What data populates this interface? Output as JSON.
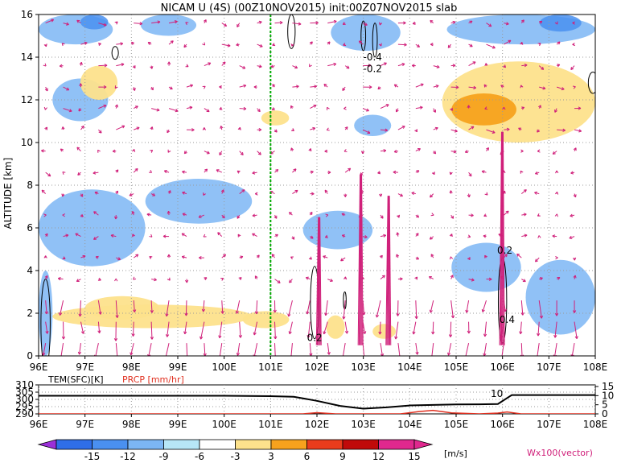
{
  "title": "NICAM U (4S) (00Z10NOV2015) init:00Z07NOV2015 slab",
  "chart_data": [
    {
      "type": "heatmap",
      "title": "NICAM U (4S) (00Z10NOV2015) init:00Z07NOV2015 slab",
      "xlabel": "",
      "ylabel": "ALTITUDE [km]",
      "xlim": [
        96,
        108
      ],
      "ylim": [
        0,
        16
      ],
      "x_ticks": [
        "96E",
        "97E",
        "98E",
        "99E",
        "100E",
        "101E",
        "102E",
        "103E",
        "104E",
        "105E",
        "106E",
        "107E",
        "108E"
      ],
      "y_ticks": [
        "0",
        "2",
        "4",
        "6",
        "8",
        "10",
        "12",
        "14",
        "16"
      ],
      "grid": true,
      "marker_line_lon": 101.0,
      "contour_labels": [
        "-0.4",
        "-0.2",
        "0.2",
        "0.2",
        "0.4"
      ],
      "u_regions": [
        {
          "level": -6,
          "x0": 96.0,
          "x1": 97.6,
          "y0": 14.6,
          "y1": 16.0
        },
        {
          "level": -9,
          "x0": 96.9,
          "x1": 97.5,
          "y0": 15.3,
          "y1": 16.0
        },
        {
          "level": -6,
          "x0": 98.2,
          "x1": 99.4,
          "y0": 15.0,
          "y1": 16.0
        },
        {
          "level": -6,
          "x0": 102.3,
          "x1": 103.8,
          "y0": 14.3,
          "y1": 16.0
        },
        {
          "level": -6,
          "x0": 104.8,
          "x1": 108.0,
          "y0": 14.6,
          "y1": 16.0
        },
        {
          "level": -9,
          "x0": 106.8,
          "x1": 107.7,
          "y0": 15.2,
          "y1": 16.0
        },
        {
          "level": -6,
          "x0": 96.3,
          "x1": 97.5,
          "y0": 11.0,
          "y1": 13.0
        },
        {
          "level": -6,
          "x0": 102.8,
          "x1": 103.6,
          "y0": 10.3,
          "y1": 11.3
        },
        {
          "level": -6,
          "x0": 96.0,
          "x1": 98.3,
          "y0": 4.2,
          "y1": 7.8
        },
        {
          "level": -6,
          "x0": 98.3,
          "x1": 100.6,
          "y0": 6.2,
          "y1": 8.3
        },
        {
          "level": -6,
          "x0": 101.7,
          "x1": 103.2,
          "y0": 5.0,
          "y1": 6.8
        },
        {
          "level": -6,
          "x0": 104.9,
          "x1": 106.4,
          "y0": 3.0,
          "y1": 5.3
        },
        {
          "level": -6,
          "x0": 106.5,
          "x1": 108.0,
          "y0": 1.0,
          "y1": 4.5
        },
        {
          "level": -6,
          "x0": 96.0,
          "x1": 96.3,
          "y0": 0.0,
          "y1": 4.0
        },
        {
          "level": 3,
          "x0": 96.9,
          "x1": 97.7,
          "y0": 12.0,
          "y1": 13.6
        },
        {
          "level": 3,
          "x0": 100.8,
          "x1": 101.4,
          "y0": 10.8,
          "y1": 11.5
        },
        {
          "level": 3,
          "x0": 104.7,
          "x1": 108.0,
          "y0": 10.0,
          "y1": 13.8
        },
        {
          "level": 6,
          "x0": 104.9,
          "x1": 106.3,
          "y0": 10.8,
          "y1": 12.3
        },
        {
          "level": 3,
          "x0": 97.0,
          "x1": 98.6,
          "y0": 1.7,
          "y1": 2.8
        },
        {
          "level": 3,
          "x0": 96.3,
          "x1": 100.6,
          "y0": 1.3,
          "y1": 2.4
        },
        {
          "level": 3,
          "x0": 100.4,
          "x1": 101.4,
          "y0": 1.3,
          "y1": 2.1
        },
        {
          "level": 3,
          "x0": 102.2,
          "x1": 102.6,
          "y0": 0.8,
          "y1": 1.9
        },
        {
          "level": 3,
          "x0": 103.2,
          "x1": 103.7,
          "y0": 0.8,
          "y1": 1.5
        }
      ]
    },
    {
      "type": "line",
      "xlabel": "",
      "ylabel": "",
      "xlim": [
        96,
        108
      ],
      "x_ticks": [
        "96E",
        "97E",
        "98E",
        "99E",
        "100E",
        "101E",
        "102E",
        "103E",
        "104E",
        "105E",
        "106E",
        "107E",
        "108E"
      ],
      "left_ticks": [
        "310",
        "305",
        "300",
        "295",
        "290"
      ],
      "right_ticks": [
        "15",
        "10",
        "5",
        "0"
      ],
      "left_label": "TEM(SFC)[K]",
      "right_label": "PRCP [mm/hr]",
      "annotation": "10",
      "series": [
        {
          "name": "TEM(SFC)[K]",
          "color": "#000000",
          "x": [
            96,
            97,
            98,
            99,
            100,
            101,
            101.5,
            102,
            102.5,
            103,
            103.5,
            104,
            104.5,
            105,
            105.5,
            105.9,
            106.2,
            107,
            108
          ],
          "y": [
            302.5,
            302.5,
            302.5,
            302.5,
            302.5,
            302.2,
            301.8,
            299,
            295.5,
            293.6,
            294.5,
            295.8,
            296.2,
            296.5,
            296.6,
            296.8,
            303.0,
            303.0,
            303.0
          ]
        },
        {
          "name": "PRCP [mm/hr]",
          "color": "#e03020",
          "x": [
            96,
            97,
            98,
            99,
            100,
            101,
            101.7,
            102,
            102.4,
            103,
            103.8,
            104.2,
            104.5,
            104.9,
            105.5,
            105.9,
            106.1,
            106.4,
            107,
            108
          ],
          "y": [
            0,
            0,
            0,
            0,
            0,
            0,
            0,
            0.6,
            0,
            0,
            0,
            1.2,
            1.8,
            0.5,
            0,
            0.4,
            1.0,
            0,
            0,
            0
          ]
        }
      ]
    }
  ],
  "colorbar": {
    "ticks": [
      "-15",
      "-12",
      "-9",
      "-6",
      "-3",
      "3",
      "6",
      "9",
      "12",
      "15"
    ],
    "unit": "[m/s]",
    "colors": [
      "#9b30d8",
      "#2f6ee8",
      "#4a90f0",
      "#7cb6f4",
      "#b7e6f6",
      "#ffffff",
      "#fde28c",
      "#f7a21d",
      "#ea3c1c",
      "#c00a0a",
      "#e0288e"
    ]
  },
  "vector_label": "Wx100(vector)",
  "colors": {
    "vector": "#d0207a",
    "grid": "#9a9a9a",
    "marker": "#00aa00",
    "precip": "#e03020",
    "contour": "#000000"
  }
}
